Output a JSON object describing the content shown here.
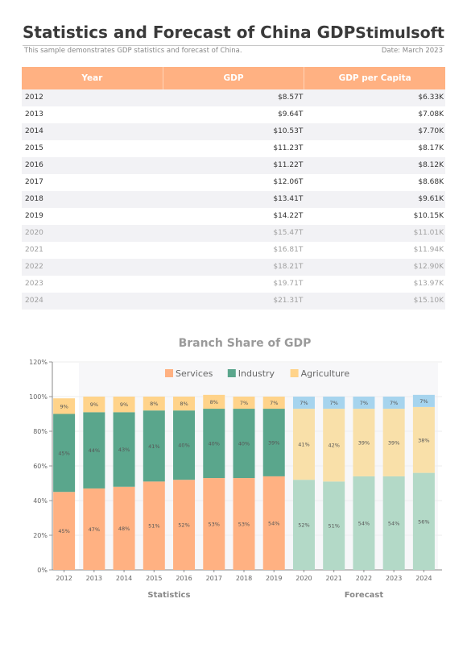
{
  "header": {
    "title": "Statistics and Forecast of China GDP",
    "brand": "Stimulsoft",
    "subtitle": "This sample demonstrates GDP statistics and forecast of China.",
    "date": "Date: March 2023"
  },
  "table": {
    "columns": [
      "Year",
      "GDP",
      "GDP per Capita"
    ],
    "rows": [
      {
        "year": "2012",
        "gdp": "$8.57T",
        "per_capita": "$6.33K",
        "forecast": false
      },
      {
        "year": "2013",
        "gdp": "$9.64T",
        "per_capita": "$7.08K",
        "forecast": false
      },
      {
        "year": "2014",
        "gdp": "$10.53T",
        "per_capita": "$7.70K",
        "forecast": false
      },
      {
        "year": "2015",
        "gdp": "$11.23T",
        "per_capita": "$8.17K",
        "forecast": false
      },
      {
        "year": "2016",
        "gdp": "$11.22T",
        "per_capita": "$8.12K",
        "forecast": false
      },
      {
        "year": "2017",
        "gdp": "$12.06T",
        "per_capita": "$8.68K",
        "forecast": false
      },
      {
        "year": "2018",
        "gdp": "$13.41T",
        "per_capita": "$9.61K",
        "forecast": false
      },
      {
        "year": "2019",
        "gdp": "$14.22T",
        "per_capita": "$10.15K",
        "forecast": false
      },
      {
        "year": "2020",
        "gdp": "$15.47T",
        "per_capita": "$11.01K",
        "forecast": true
      },
      {
        "year": "2021",
        "gdp": "$16.81T",
        "per_capita": "$11.94K",
        "forecast": true
      },
      {
        "year": "2022",
        "gdp": "$18.21T",
        "per_capita": "$12.90K",
        "forecast": true
      },
      {
        "year": "2023",
        "gdp": "$19.71T",
        "per_capita": "$13.97K",
        "forecast": true
      },
      {
        "year": "2024",
        "gdp": "$21.31T",
        "per_capita": "$15.10K",
        "forecast": true
      }
    ]
  },
  "chart_data": {
    "type": "bar",
    "stacked": true,
    "title": "Branch Share of GDP",
    "categories": [
      "2012",
      "2013",
      "2014",
      "2015",
      "2016",
      "2017",
      "2018",
      "2019",
      "2020",
      "2021",
      "2022",
      "2023",
      "2024"
    ],
    "ylim": [
      0,
      120
    ],
    "yticks": [
      "0%",
      "20%",
      "40%",
      "60%",
      "80%",
      "100%",
      "120%"
    ],
    "legend_position": "top-center",
    "groups": [
      {
        "label": "Statistics",
        "from": 0,
        "to": 7
      },
      {
        "label": "Forecast",
        "from": 8,
        "to": 12
      }
    ],
    "series": [
      {
        "name": "Services",
        "color": "#ffb182",
        "forecast_color": "#b3d9c7",
        "values": [
          45,
          47,
          48,
          51,
          52,
          53,
          53,
          54,
          52,
          51,
          54,
          54,
          56
        ],
        "labels": [
          "45%",
          "47%",
          "48%",
          "51%",
          "52%",
          "53%",
          "53%",
          "54%",
          "52%",
          "51%",
          "54%",
          "54%",
          "56%"
        ]
      },
      {
        "name": "Industry",
        "color": "#5aa68c",
        "forecast_color": "#f9e0a9",
        "values": [
          45,
          44,
          43,
          41,
          40,
          40,
          40,
          39,
          41,
          42,
          39,
          39,
          38
        ],
        "labels": [
          "45%",
          "44%",
          "43%",
          "41%",
          "40%",
          "40%",
          "40%",
          "39%",
          "41%",
          "42%",
          "39%",
          "39%",
          "38%"
        ]
      },
      {
        "name": "Agriculture",
        "color": "#ffd38a",
        "forecast_color": "#a6d4ee",
        "values": [
          9,
          9,
          9,
          8,
          8,
          8,
          7,
          7,
          7,
          7,
          7,
          7,
          7
        ],
        "labels": [
          "9%",
          "9%",
          "9%",
          "8%",
          "8%",
          "8%",
          "7%",
          "7%",
          "7%",
          "7%",
          "7%",
          "7%",
          "7%"
        ]
      }
    ]
  }
}
